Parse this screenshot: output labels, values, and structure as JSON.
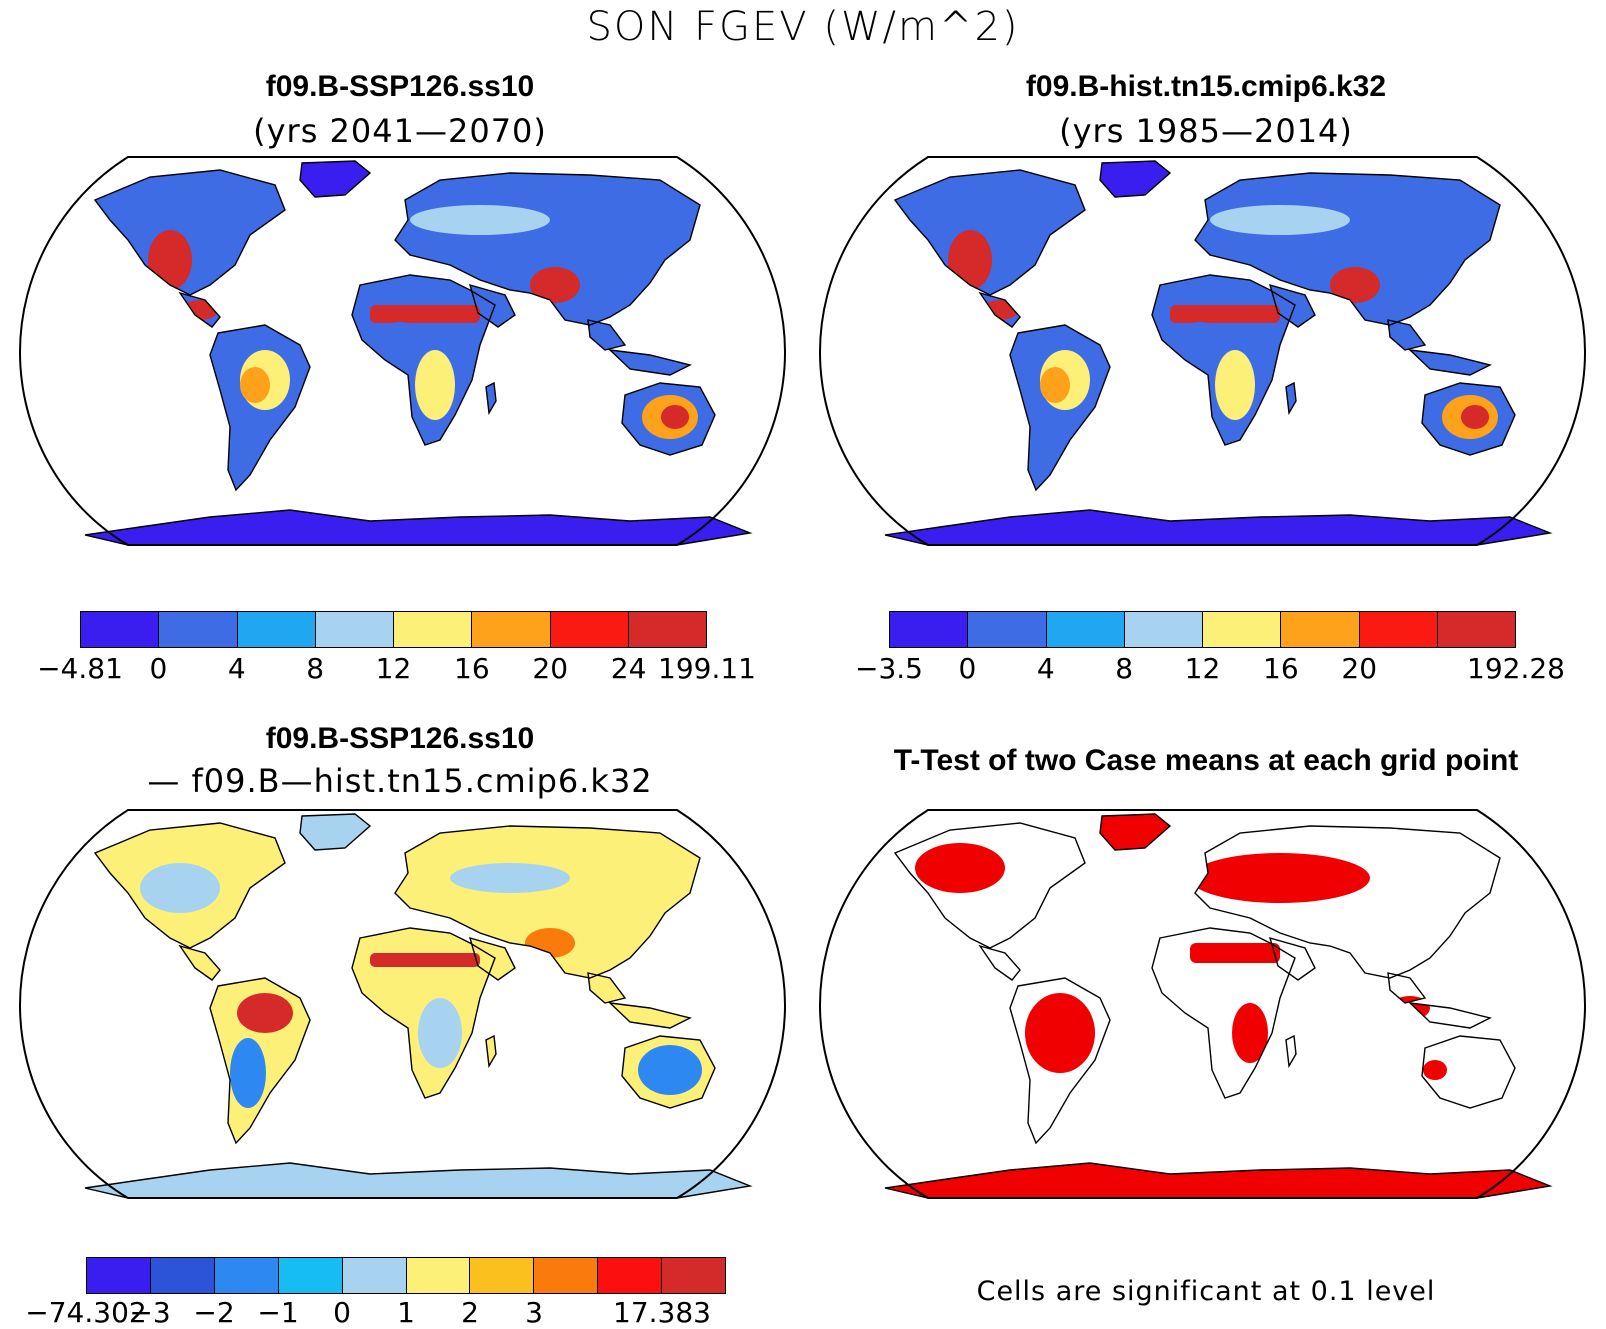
{
  "main_title": "SON FGEV (W/m^2)",
  "panels": {
    "top_left": {
      "title": "f09.B-SSP126.ss10",
      "subtitle": "(yrs 2041—2070)"
    },
    "top_right": {
      "title": "f09.B-hist.tn15.cmip6.k32",
      "subtitle": "(yrs 1985—2014)"
    },
    "bottom_left": {
      "title": "f09.B-SSP126.ss10",
      "subtitle": "— f09.B—hist.tn15.cmip6.k32"
    },
    "bottom_right": {
      "title": "T-Test of two Case means at each grid point",
      "note": "Cells are significant at 0.1 level"
    }
  },
  "colorbars": {
    "top_left": {
      "colors": [
        "#3a1ef0",
        "#3d6ce4",
        "#1fa7f2",
        "#a8d3f0",
        "#fdf078",
        "#fda21a",
        "#fb1a12",
        "#d42a2a"
      ],
      "labels": [
        "−4.81",
        "0",
        "4",
        "8",
        "12",
        "16",
        "20",
        "24",
        "199.11"
      ]
    },
    "top_right": {
      "colors": [
        "#3a1ef0",
        "#3d6ce4",
        "#1fa7f2",
        "#a8d3f0",
        "#fdf078",
        "#fda21a",
        "#fb1a12",
        "#d42a2a"
      ],
      "labels": [
        "−3.5",
        "0",
        "4",
        "8",
        "12",
        "16",
        "20",
        "",
        "192.28"
      ]
    },
    "bottom_left": {
      "colors": [
        "#3a1ef0",
        "#2c54d8",
        "#2d88f2",
        "#16bcf4",
        "#a8d3f0",
        "#fdf078",
        "#fbc01e",
        "#fb7a0c",
        "#fb0f0f",
        "#d42a2a"
      ],
      "labels": [
        "−74.302",
        "−3",
        "−2",
        "−1",
        "0",
        "1",
        "2",
        "3",
        "",
        "17.383"
      ]
    }
  },
  "map_colors": {
    "ocean": "#ffffff",
    "outline": "#000000",
    "significance": "#f00000"
  }
}
